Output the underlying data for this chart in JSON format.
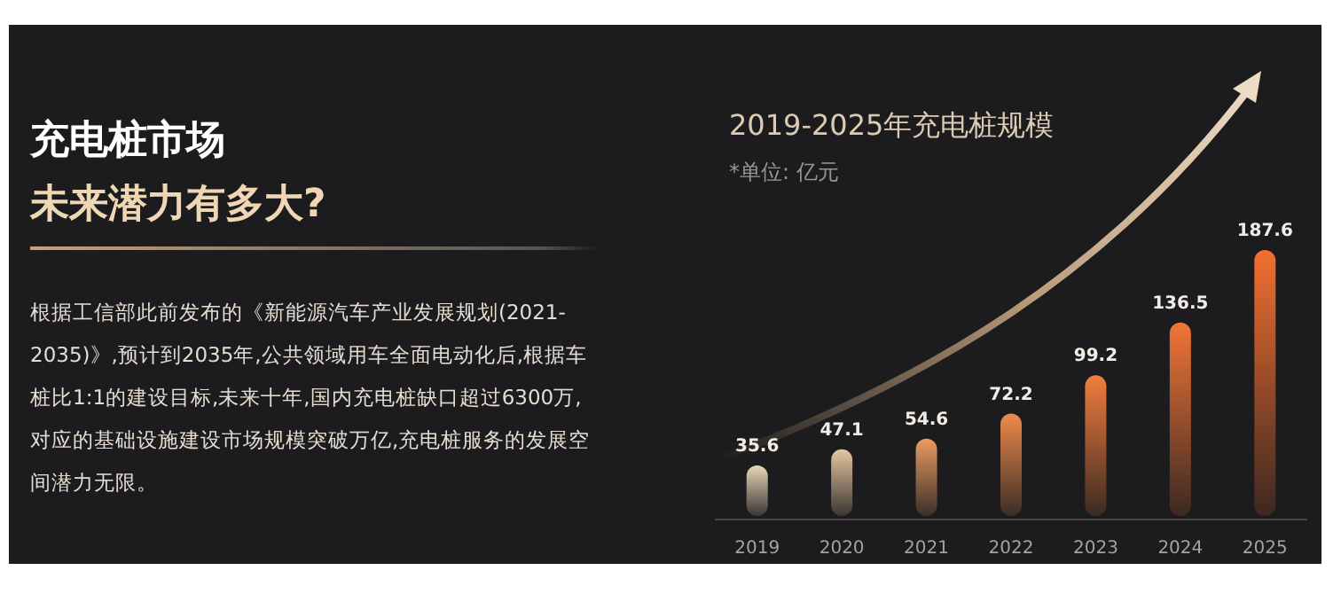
{
  "chart_data": {
    "type": "bar",
    "title": "2019-2025年充电桩规模",
    "subtitle": "*单位: 亿元",
    "annotations": [
      "充电桩市场",
      "未来潜力有多大?",
      "根据工信部此前发布的《新能源汽车产业发展规划(2021-2035)》,预计到2035年,公共领域用车全面电动化后,根据车桩比1:1的建设目标,未来十年,国内充电桩缺口超过6300万,对应的基础设施建设市场规模突破万亿,充电桩服务的发展空间潜力无限。"
    ],
    "categories": [
      "2019",
      "2020",
      "2021",
      "2022",
      "2023",
      "2024",
      "2025"
    ],
    "values": [
      35.6,
      47.1,
      54.6,
      72.2,
      99.2,
      136.5,
      187.6
    ],
    "colors": [
      "#e8d6b8",
      "#e6c7a2",
      "#eb9c62",
      "#ee8b4b",
      "#f07e3e",
      "#f27537",
      "#f36f30"
    ],
    "data_labels": true
  }
}
